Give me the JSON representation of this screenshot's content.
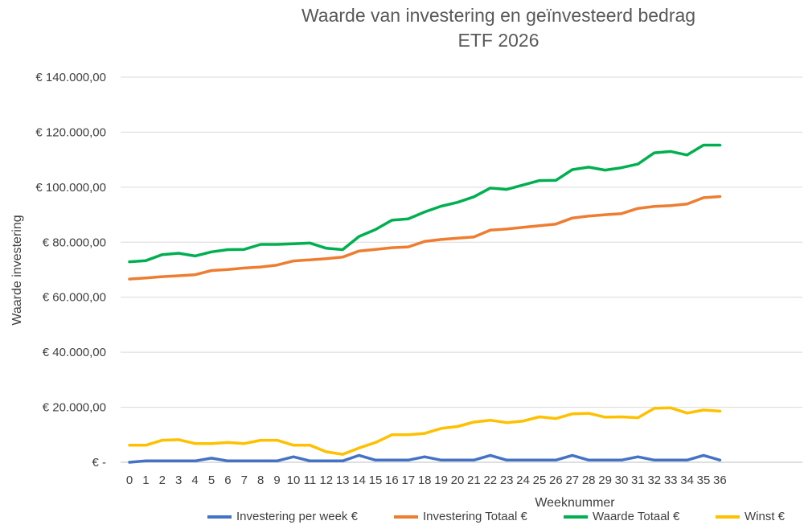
{
  "chart_data": {
    "type": "line",
    "title": "Waarde van investering en geïnvesteerd bedrag",
    "subtitle": "ETF 2026",
    "xlabel": "Weeknummer",
    "ylabel": "Waarde investering",
    "ylim": [
      0,
      140000
    ],
    "grid": true,
    "legend_position": "bottom",
    "y_tick_labels": [
      "€ -",
      "€ 20.000,00",
      "€ 40.000,00",
      "€ 60.000,00",
      "€ 80.000,00",
      "€ 100.000,00",
      "€ 120.000,00",
      "€ 140.000,00"
    ],
    "x": [
      "0",
      "1",
      "2",
      "3",
      "4",
      "5",
      "6",
      "7",
      "8",
      "9",
      "10",
      "11",
      "12",
      "13",
      "14",
      "15",
      "16",
      "17",
      "18",
      "19",
      "20",
      "21",
      "22",
      "23",
      "24",
      "25",
      "26",
      "27",
      "28",
      "29",
      "30",
      "31",
      "32",
      "33",
      "34",
      "35",
      "36"
    ],
    "series": [
      {
        "name": "Investering per week €",
        "color": "#4472C4",
        "values": [
          0,
          500,
          500,
          500,
          500,
          1500,
          500,
          500,
          500,
          500,
          2000,
          500,
          500,
          500,
          2500,
          800,
          800,
          800,
          2000,
          800,
          800,
          800,
          2500,
          800,
          800,
          800,
          800,
          2500,
          800,
          800,
          800,
          2000,
          800,
          800,
          800,
          2500,
          800
        ]
      },
      {
        "name": "Investering Totaal €",
        "color": "#ED7D31",
        "values": [
          66600,
          67000,
          67500,
          67800,
          68200,
          69700,
          70100,
          70600,
          71000,
          71700,
          73200,
          73600,
          74000,
          74600,
          76800,
          77400,
          78000,
          78300,
          80300,
          81000,
          81500,
          81900,
          84400,
          84800,
          85400,
          86000,
          86600,
          88800,
          89500,
          90000,
          90400,
          92300,
          93000,
          93300,
          93900,
          96200,
          96600
        ]
      },
      {
        "name": "Waarde Totaal €",
        "color": "#00B050",
        "values": [
          72900,
          73300,
          75500,
          76000,
          75000,
          76500,
          77300,
          77400,
          79200,
          79200,
          79400,
          79700,
          77800,
          77300,
          82100,
          84600,
          88000,
          88500,
          91000,
          93100,
          94500,
          96500,
          99700,
          99200,
          100800,
          102400,
          102500,
          106400,
          107300,
          106200,
          107100,
          108400,
          112500,
          113000,
          111700,
          115300,
          115300
        ]
      },
      {
        "name": "Winst €",
        "color": "#FFC000",
        "values": [
          6200,
          6200,
          8000,
          8200,
          6800,
          6800,
          7200,
          6800,
          8000,
          8000,
          6200,
          6200,
          3800,
          2900,
          5200,
          7200,
          10000,
          10000,
          10500,
          12300,
          13000,
          14600,
          15300,
          14400,
          15000,
          16500,
          15900,
          17600,
          17800,
          16400,
          16500,
          16200,
          19600,
          19800,
          17900,
          19000,
          18600
        ]
      }
    ]
  }
}
